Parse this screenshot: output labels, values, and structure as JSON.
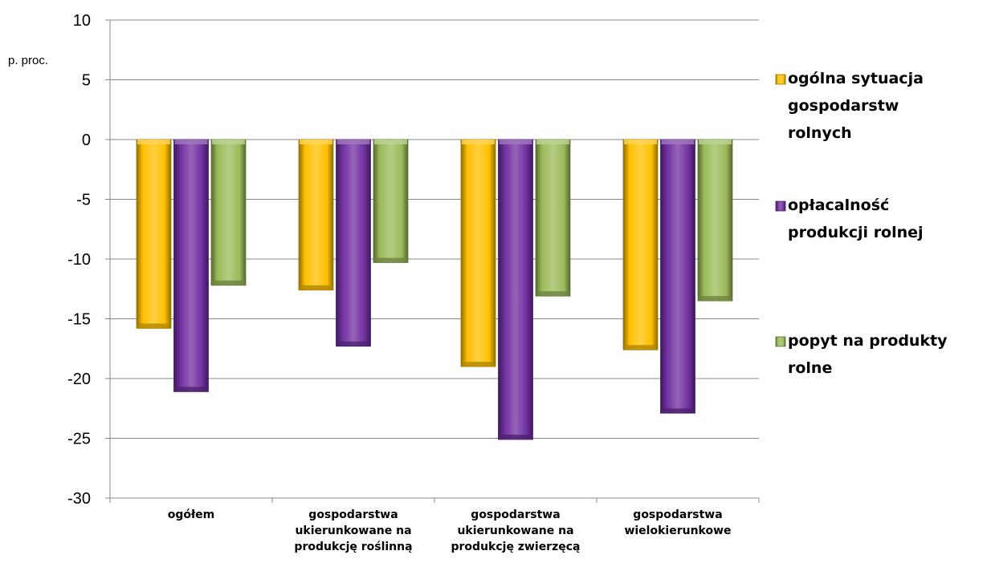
{
  "chart_data": {
    "type": "bar",
    "ylabel": "p. proc.",
    "ylim": [
      -30,
      10
    ],
    "yticks": [
      "10",
      "5",
      "0",
      "-5",
      "-10",
      "-15",
      "-20",
      "-25",
      "-30"
    ],
    "grid": true,
    "legend_position": "right",
    "categories": [
      [
        "ogółem"
      ],
      [
        "gospodarstwa",
        "ukierunkowane na",
        "produkcję roślinną"
      ],
      [
        "gospodarstwa",
        "ukierunkowane na",
        "produkcję zwierzęcą"
      ],
      [
        "gospodarstwa",
        "wielokierunkowe"
      ]
    ],
    "series": [
      {
        "name": [
          "ogólna sytuacja",
          "gospodarstw",
          "rolnych"
        ],
        "color": "#FFC000",
        "values": [
          -15.8,
          -12.6,
          -19.0,
          -17.6
        ]
      },
      {
        "name": [
          "opłacalność",
          "produkcji rolnej"
        ],
        "color": "#7030A0",
        "values": [
          -21.1,
          -17.3,
          -25.1,
          -22.9
        ]
      },
      {
        "name": [
          "popyt na produkty",
          "rolne"
        ],
        "color": "#9BBB59",
        "values": [
          -12.2,
          -10.3,
          -13.1,
          -13.5
        ]
      }
    ]
  }
}
